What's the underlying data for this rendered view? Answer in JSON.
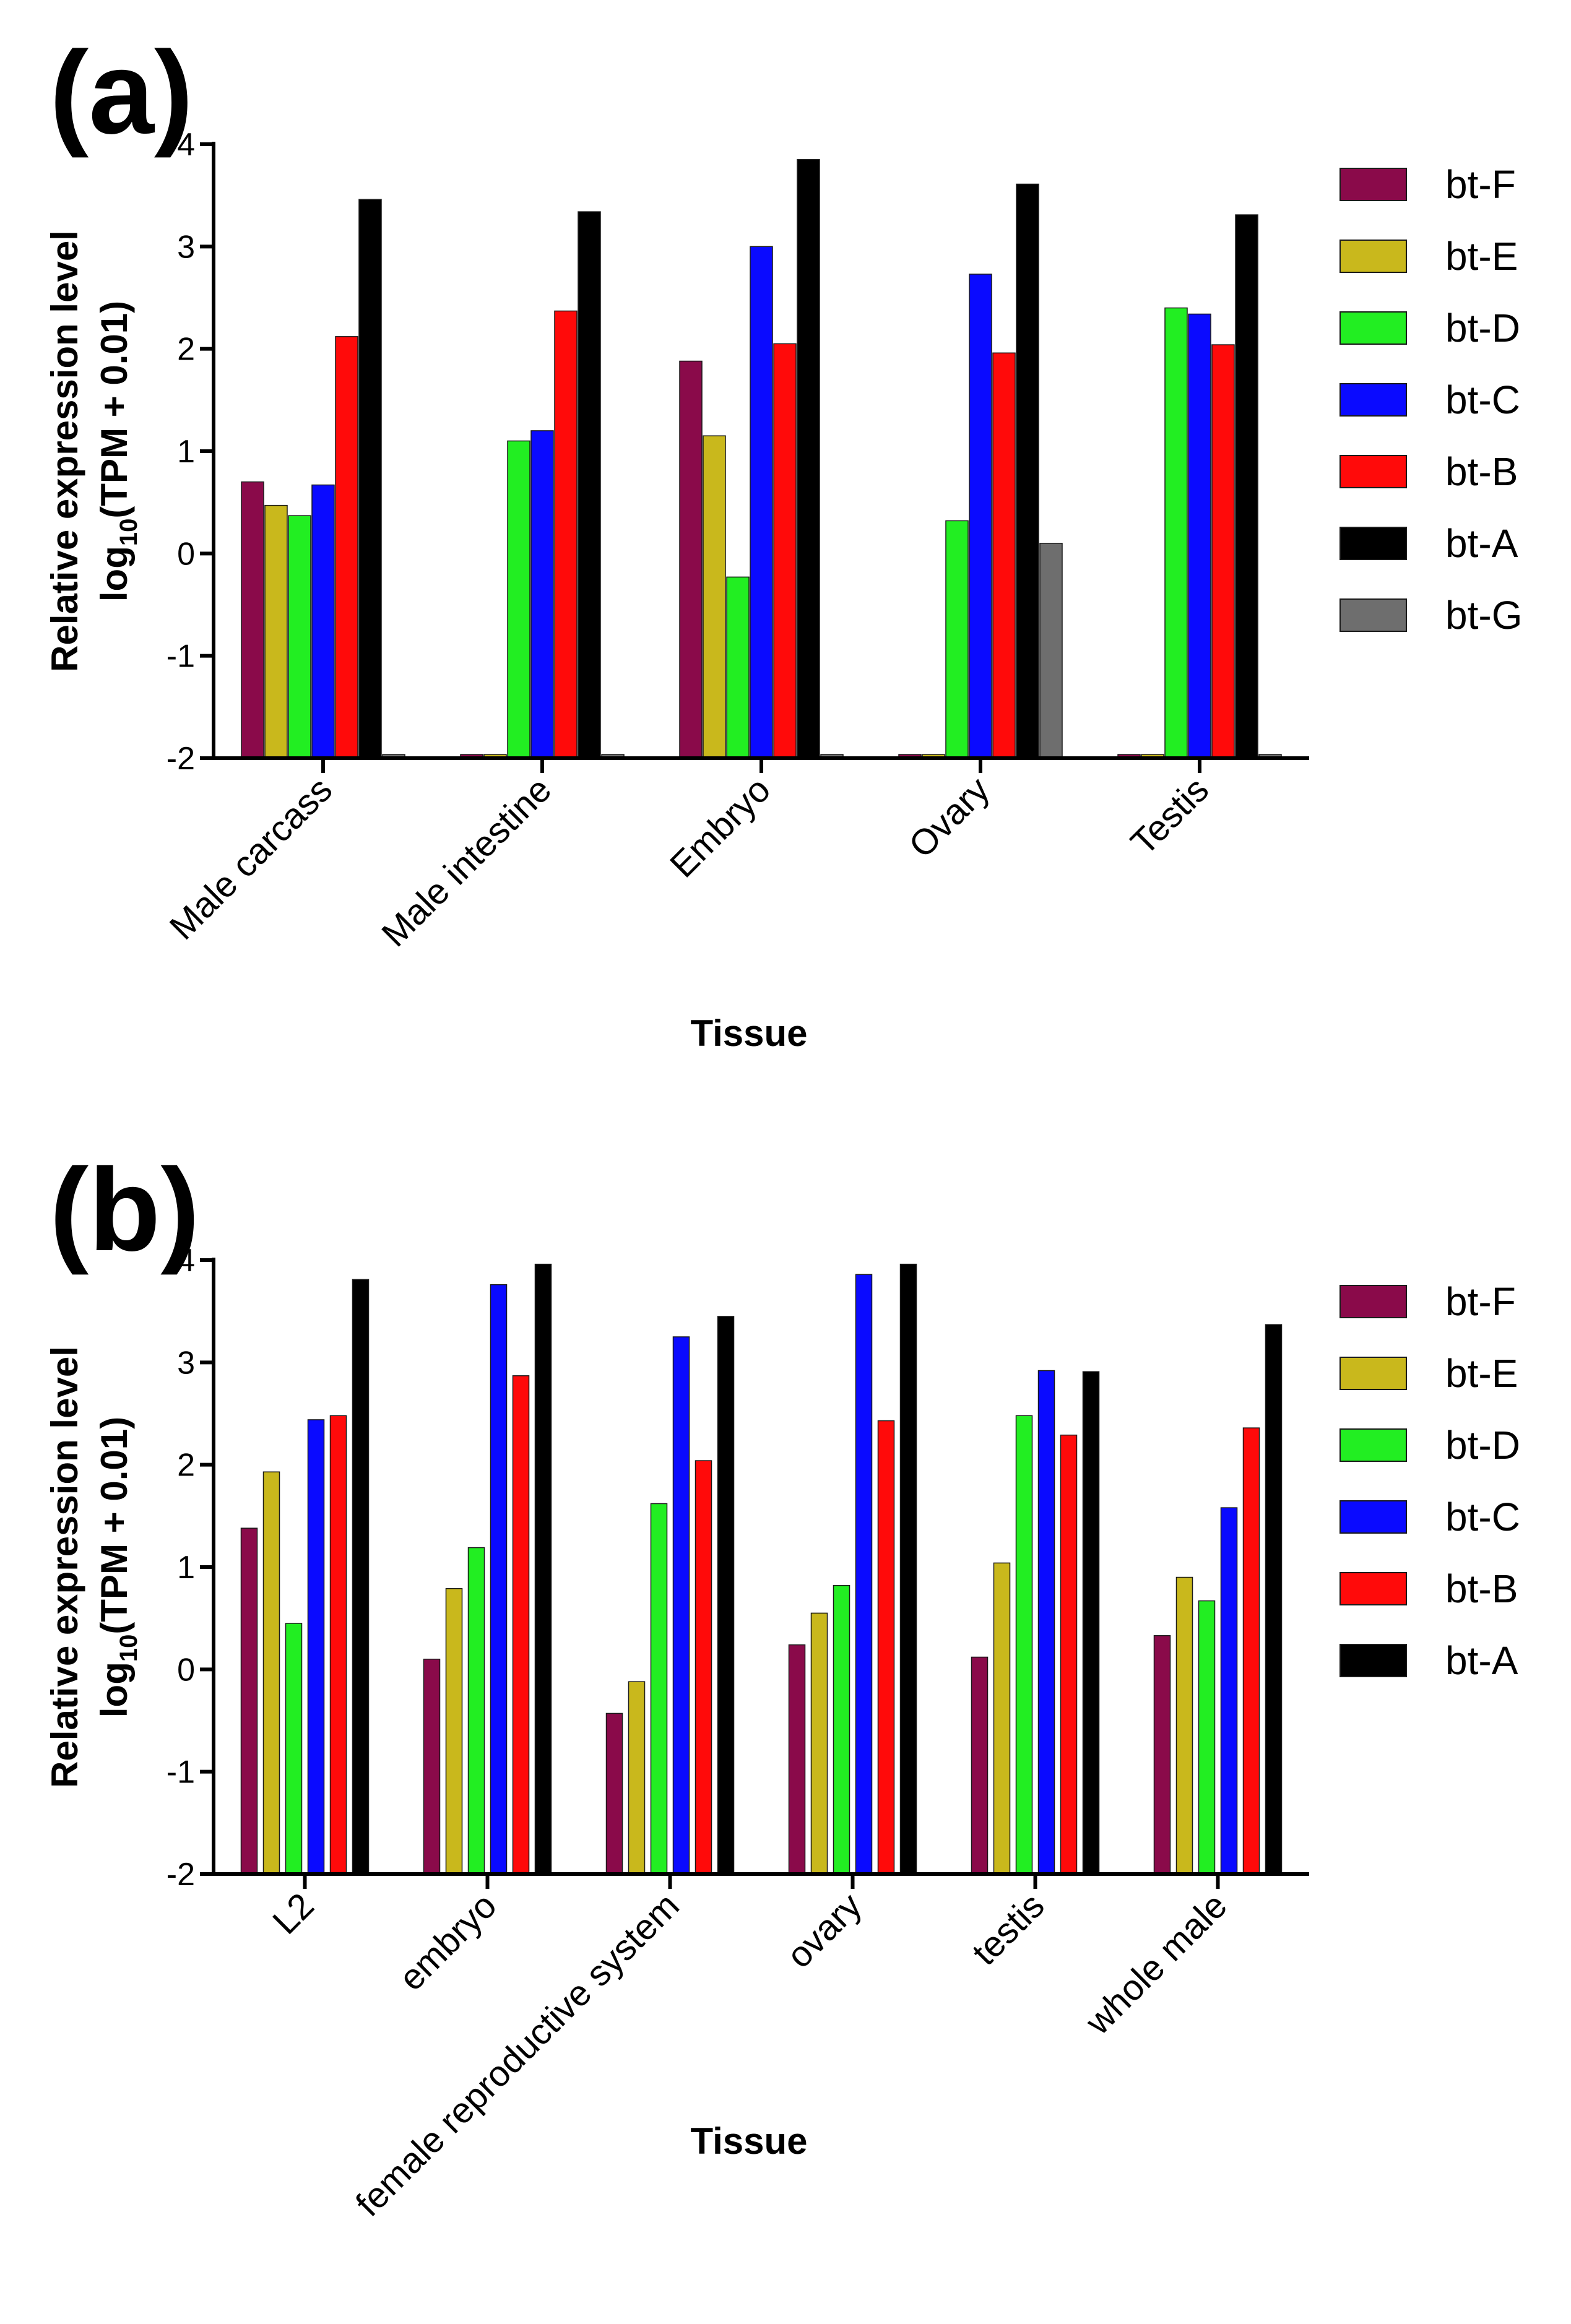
{
  "colors": {
    "bt-F": "#8a0a4a",
    "bt-E": "#c9b81c",
    "bt-D": "#22ee22",
    "bt-C": "#0a0aff",
    "bt-B": "#ff0a0a",
    "bt-A": "#000000",
    "bt-G": "#6e6e6e"
  },
  "chart_data": [
    {
      "type": "bar",
      "panel": "(a)",
      "ylabel_line1": "Relative expression level",
      "ylabel_line2_prefix": "log",
      "ylabel_line2_sub": "10",
      "ylabel_line2_suffix": "(TPM + 0.01)",
      "xlabel": "Tissue",
      "ylim": [
        -2,
        4
      ],
      "yticks": [
        "-2",
        "-1",
        "0",
        "1",
        "2",
        "3",
        "4"
      ],
      "categories": [
        "Male carcass",
        "Male intestine",
        "Embryo",
        "Ovary",
        "Testis"
      ],
      "series": [
        {
          "name": "bt-F",
          "values": [
            0.7,
            -2.0,
            1.88,
            -2.0,
            -2.0
          ]
        },
        {
          "name": "bt-E",
          "values": [
            0.47,
            -2.0,
            1.15,
            -2.0,
            -2.0
          ]
        },
        {
          "name": "bt-D",
          "values": [
            0.37,
            1.1,
            -0.23,
            0.32,
            2.4
          ]
        },
        {
          "name": "bt-C",
          "values": [
            0.67,
            1.2,
            3.0,
            2.73,
            2.34
          ]
        },
        {
          "name": "bt-B",
          "values": [
            2.12,
            2.37,
            2.05,
            1.96,
            2.04
          ]
        },
        {
          "name": "bt-A",
          "values": [
            3.46,
            3.34,
            3.85,
            3.61,
            3.31
          ]
        },
        {
          "name": "bt-G",
          "values": [
            -2.0,
            -2.0,
            -2.0,
            0.1,
            -2.0
          ]
        }
      ],
      "legend": [
        "bt-F",
        "bt-E",
        "bt-D",
        "bt-C",
        "bt-B",
        "bt-A",
        "bt-G"
      ]
    },
    {
      "type": "bar",
      "panel": "(b)",
      "ylabel_line1": "Relative expression level",
      "ylabel_line2_prefix": "log",
      "ylabel_line2_sub": "10",
      "ylabel_line2_suffix": "(TPM + 0.01)",
      "xlabel": "Tissue",
      "ylim": [
        -2,
        4
      ],
      "yticks": [
        "-2",
        "-1",
        "0",
        "1",
        "2",
        "3",
        "4"
      ],
      "categories": [
        "L2",
        "embryo",
        "female reproductive system",
        "ovary",
        "testis",
        "whole male"
      ],
      "series": [
        {
          "name": "bt-F",
          "values": [
            1.38,
            0.1,
            -0.43,
            0.24,
            0.12,
            0.33
          ]
        },
        {
          "name": "bt-E",
          "values": [
            1.93,
            0.79,
            -0.12,
            0.55,
            1.04,
            0.9
          ]
        },
        {
          "name": "bt-D",
          "values": [
            0.45,
            1.19,
            1.62,
            0.82,
            2.48,
            0.67
          ]
        },
        {
          "name": "bt-C",
          "values": [
            2.44,
            3.76,
            3.25,
            3.86,
            2.92,
            1.58
          ]
        },
        {
          "name": "bt-B",
          "values": [
            2.48,
            2.87,
            2.04,
            2.43,
            2.29,
            2.36
          ]
        },
        {
          "name": "bt-A",
          "values": [
            3.81,
            3.96,
            3.45,
            3.96,
            2.91,
            3.37
          ]
        }
      ],
      "legend": [
        "bt-F",
        "bt-E",
        "bt-D",
        "bt-C",
        "bt-B",
        "bt-A"
      ]
    }
  ]
}
